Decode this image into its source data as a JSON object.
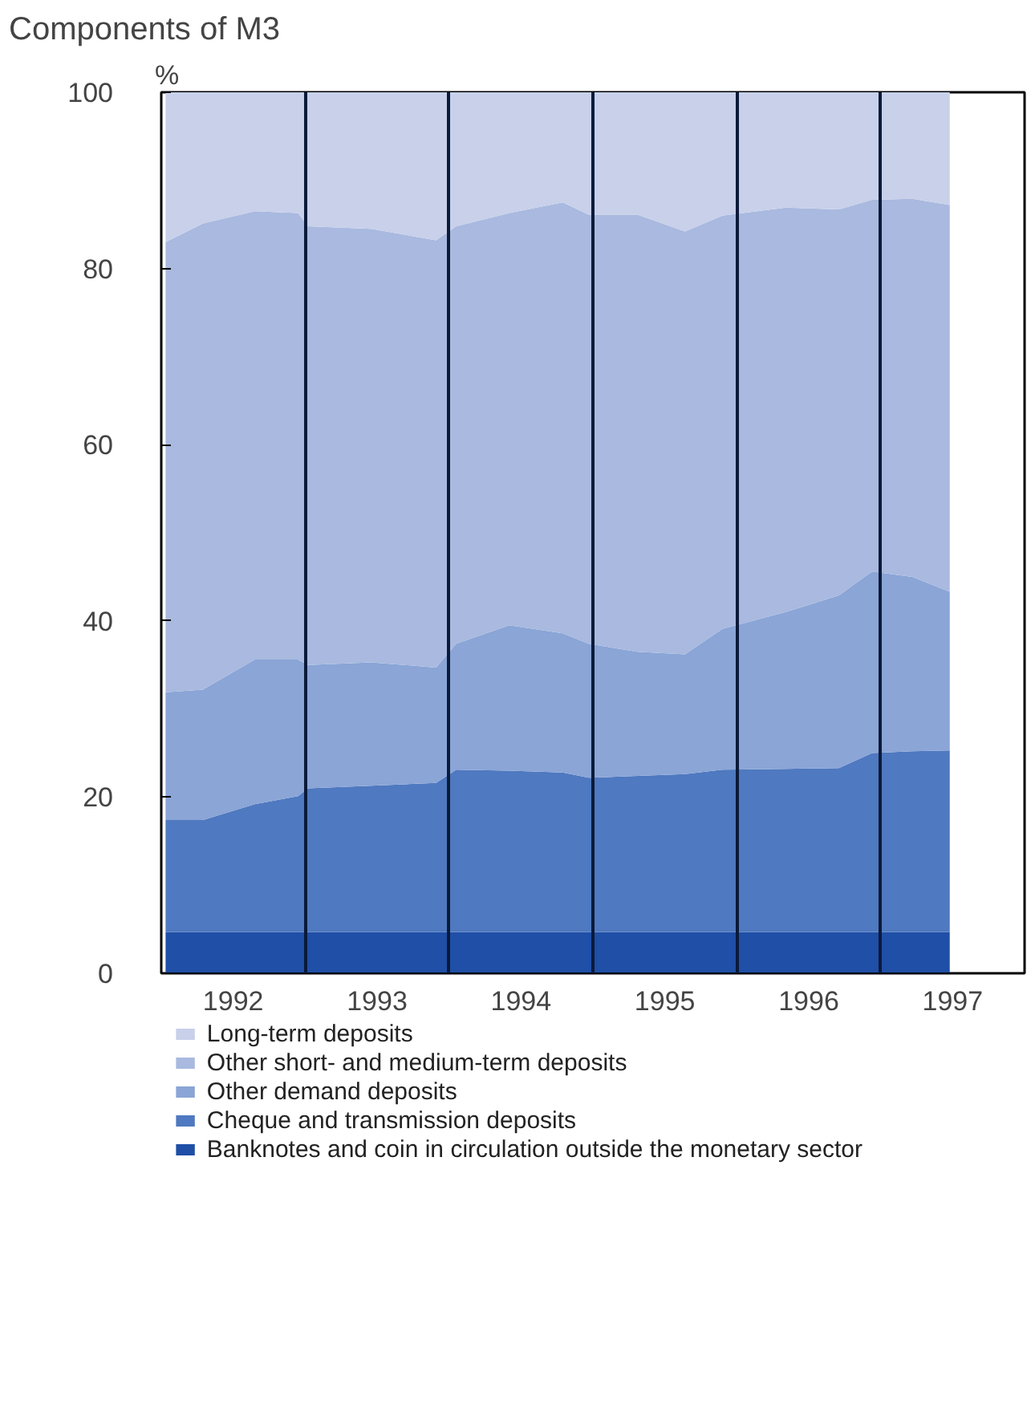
{
  "chart_data": {
    "type": "area",
    "stacked": true,
    "title": "Components of M3",
    "ylabel": "%",
    "x": [
      1992.03,
      1992.29,
      1992.65,
      1992.95,
      1993.02,
      1993.46,
      1993.91,
      1994.05,
      1994.42,
      1994.79,
      1994.97,
      1995.31,
      1995.64,
      1995.9,
      1996.34,
      1996.71,
      1996.94,
      1997.22,
      1997.48
    ],
    "series": [
      {
        "name": "Banknotes and coin in circulation outside the monetary sector",
        "color": "#1f4fa6",
        "values": [
          4.7,
          4.7,
          4.7,
          4.7,
          4.7,
          4.7,
          4.7,
          4.7,
          4.7,
          4.7,
          4.7,
          4.7,
          4.7,
          4.7,
          4.7,
          4.7,
          4.7,
          4.7,
          4.7
        ]
      },
      {
        "name": "Cheque and transmission deposits",
        "color": "#4f79c0",
        "values": [
          12.7,
          12.7,
          14.5,
          15.4,
          16.3,
          16.6,
          16.9,
          18.4,
          18.3,
          18.1,
          17.5,
          17.7,
          17.9,
          18.4,
          18.5,
          18.6,
          20.3,
          20.5,
          20.6
        ]
      },
      {
        "name": "Other demand deposits",
        "color": "#8aa5d6",
        "values": [
          14.5,
          14.8,
          16.4,
          15.5,
          14.0,
          14.0,
          13.1,
          14.3,
          16.5,
          15.8,
          15.2,
          14.1,
          13.6,
          16.0,
          17.8,
          19.6,
          20.6,
          19.8,
          18.0
        ]
      },
      {
        "name": "Other short- and medium-term deposits",
        "color": "#a9b9df",
        "values": [
          51.1,
          52.9,
          50.9,
          50.7,
          49.8,
          49.2,
          48.5,
          47.4,
          46.8,
          48.9,
          48.7,
          49.6,
          48.0,
          46.9,
          45.9,
          43.8,
          42.2,
          42.9,
          43.9
        ]
      },
      {
        "name": "Long-term deposits",
        "color": "#c8d0ea",
        "values": [
          17.0,
          14.9,
          13.5,
          13.7,
          15.2,
          15.5,
          16.8,
          15.2,
          13.7,
          12.5,
          13.9,
          13.9,
          15.8,
          14.0,
          13.1,
          13.3,
          12.2,
          12.1,
          12.8
        ]
      }
    ],
    "xlim": [
      1992,
      1998
    ],
    "xticks": [
      {
        "value": 1992.5,
        "label": "1992"
      },
      {
        "value": 1993,
        "label": null
      },
      {
        "value": 1993.5,
        "label": "1993"
      },
      {
        "value": 1994,
        "label": null
      },
      {
        "value": 1994.5,
        "label": "1994"
      },
      {
        "value": 1995,
        "label": null
      },
      {
        "value": 1995.5,
        "label": "1995"
      },
      {
        "value": 1996,
        "label": null
      },
      {
        "value": 1996.5,
        "label": "1996"
      },
      {
        "value": 1997,
        "label": null
      },
      {
        "value": 1997.5,
        "label": "1997"
      }
    ],
    "ylim": [
      0,
      100
    ],
    "yticks": [
      0,
      20,
      40,
      60,
      80,
      100
    ],
    "grid": "x",
    "legend": "bottom"
  }
}
